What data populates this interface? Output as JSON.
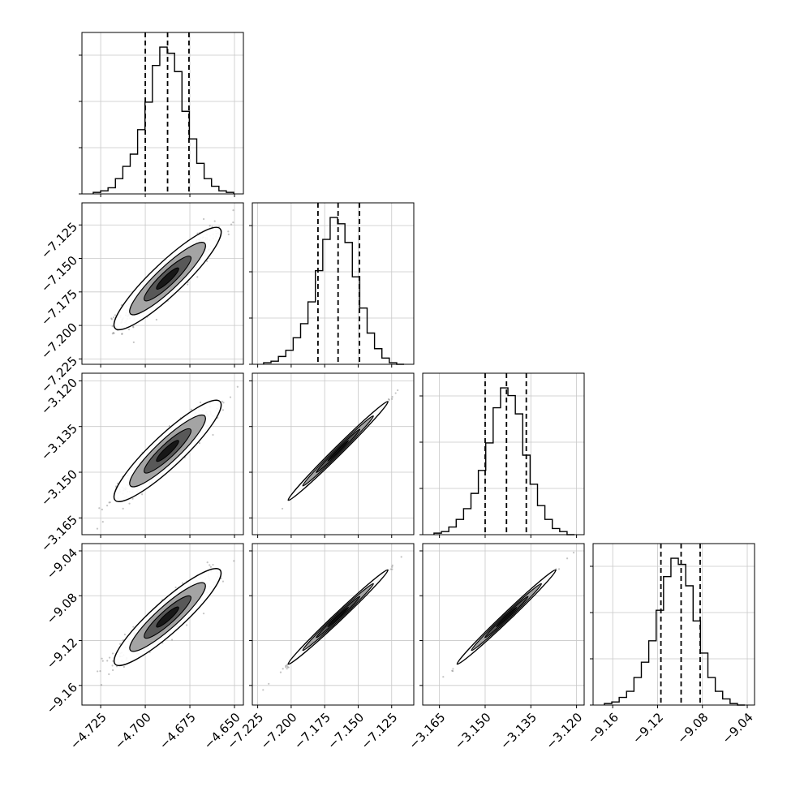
{
  "chart_data": {
    "type": "corner",
    "params": [
      {
        "ticks": [
          -4.725,
          -4.7,
          -4.675,
          -4.65
        ],
        "tick_labels": [
          "−4.725",
          "−4.700",
          "−4.675",
          "−4.650"
        ],
        "range": [
          -4.7355,
          -4.645
        ],
        "quantiles": [
          -4.7,
          -4.6875,
          -4.6755
        ]
      },
      {
        "ticks": [
          -7.225,
          -7.2,
          -7.175,
          -7.15,
          -7.125
        ],
        "tick_labels": [
          "−7.225",
          "−7.200",
          "−7.175",
          "−7.150",
          "−7.125"
        ],
        "range": [
          -7.229,
          -7.1085
        ],
        "quantiles": [
          -7.18,
          -7.165,
          -7.149
        ]
      },
      {
        "ticks": [
          -3.165,
          -3.15,
          -3.135,
          -3.12
        ],
        "tick_labels": [
          "−3.165",
          "−3.150",
          "−3.135",
          "−3.120"
        ],
        "range": [
          -3.1705,
          -3.1175
        ],
        "quantiles": [
          -3.15,
          -3.143,
          -3.1365
        ]
      },
      {
        "ticks": [
          -9.16,
          -9.12,
          -9.08,
          -9.04
        ],
        "tick_labels": [
          "−9.16",
          "−9.12",
          "−9.08",
          "−9.04"
        ],
        "range": [
          -9.1775,
          -9.0335
        ],
        "quantiles": [
          -9.117,
          -9.099,
          -9.082
        ]
      }
    ],
    "histograms": [
      [
        1,
        2,
        4,
        10,
        18,
        26,
        42,
        60,
        84,
        96,
        92,
        80,
        54,
        36,
        20,
        10,
        5,
        2,
        1
      ],
      [
        1,
        2,
        5,
        9,
        17,
        26,
        40,
        60,
        80,
        94,
        90,
        78,
        56,
        36,
        20,
        10,
        4,
        1,
        0
      ],
      [
        1,
        2,
        5,
        10,
        17,
        27,
        42,
        60,
        83,
        96,
        91,
        79,
        52,
        33,
        19,
        10,
        4,
        2,
        0
      ],
      [
        1,
        2,
        5,
        9,
        18,
        28,
        42,
        62,
        84,
        96,
        92,
        78,
        55,
        34,
        18,
        9,
        4,
        1,
        0
      ]
    ],
    "grid": true,
    "quantile_lines": "dashed",
    "xlabel": "",
    "ylabel": ""
  }
}
